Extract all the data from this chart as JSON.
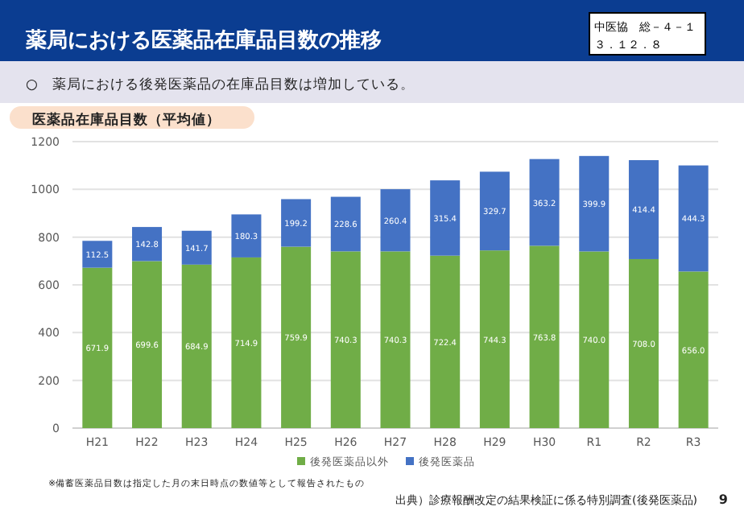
{
  "chart_data": {
    "type": "bar",
    "stacked": true,
    "title": "薬局における医薬品在庫品目数の推移",
    "subtitle": "○　薬局における後発医薬品の在庫品目数は増加している。",
    "categories": [
      "H21",
      "H22",
      "H23",
      "H24",
      "H25",
      "H26",
      "H27",
      "H28",
      "H29",
      "H30",
      "R1",
      "R2",
      "R3"
    ],
    "series": [
      {
        "name": "後発医薬品以外",
        "color": "#70ad47",
        "values": [
          671.9,
          699.6,
          684.9,
          714.9,
          759.9,
          740.3,
          740.3,
          722.4,
          744.3,
          763.8,
          740.0,
          708.0,
          656.0
        ],
        "value_labels": [
          "671.9",
          "699.6",
          "684.9",
          "714.9",
          "759.9",
          "740.3",
          "740.3",
          "722.4",
          "744.3",
          "763.8",
          "740.0",
          "708.0",
          "656.0"
        ]
      },
      {
        "name": "後発医薬品",
        "color": "#4472c4",
        "values": [
          112.5,
          142.8,
          141.7,
          180.3,
          199.2,
          228.6,
          260.4,
          315.4,
          329.7,
          363.2,
          399.9,
          414.4,
          444.3
        ],
        "value_labels": [
          "112.5",
          "142.8",
          "141.7",
          "180.3",
          "199.2",
          "228.6",
          "260.4",
          "315.4",
          "329.7",
          "363.2",
          "399.9",
          "414.4",
          "444.3"
        ]
      }
    ],
    "ylim": [
      0,
      1200
    ],
    "yticks": [
      0,
      200,
      400,
      600,
      800,
      1000,
      1200
    ],
    "grid": "y",
    "legend": "bottom",
    "annotations": [
      "中医協　総－４－１",
      "３．１２．８",
      "医薬品在庫品目数（平均値）",
      "※備蓄医薬品目数は指定した月の末日時点の数値等として報告されたもの",
      "出典）診療報酬改定の結果検証に係る特別調査(後発医薬品)",
      "9"
    ]
  }
}
